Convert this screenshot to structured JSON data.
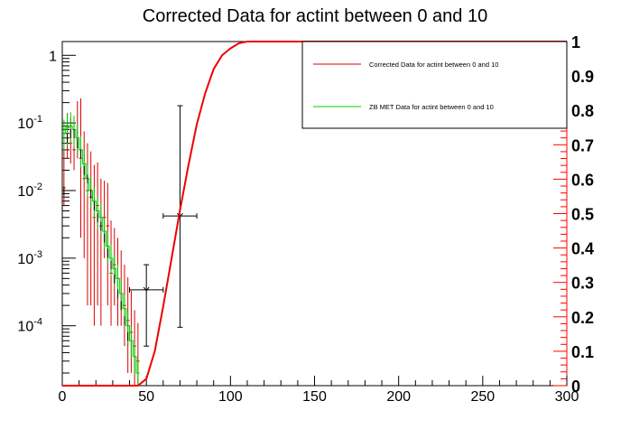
{
  "chart_data": {
    "type": "line",
    "title": "Corrected Data for actint between 0 and 10",
    "x_axis": {
      "range": [
        0,
        300
      ],
      "ticks": [
        0,
        50,
        100,
        150,
        200,
        250,
        300
      ],
      "tick_labels": [
        "0",
        "50",
        "100",
        "150",
        "200",
        "250",
        "300"
      ],
      "label": ""
    },
    "y_axis_left": {
      "scale": "log",
      "range": [
        1.3e-05,
        1.6
      ],
      "ticks": [
        0.0001,
        0.001,
        0.01,
        0.1,
        1
      ],
      "tick_labels": [
        {
          "base": "10",
          "exp": "-4"
        },
        {
          "base": "10",
          "exp": "-3"
        },
        {
          "base": "10",
          "exp": "-2"
        },
        {
          "base": "10",
          "exp": "-1"
        },
        {
          "base": "1",
          "exp": ""
        }
      ],
      "color": "#000000"
    },
    "y_axis_right": {
      "scale": "linear",
      "range": [
        0,
        1
      ],
      "ticks": [
        0,
        0.1,
        0.2,
        0.3,
        0.4,
        0.5,
        0.6,
        0.7,
        0.8,
        0.9,
        1
      ],
      "tick_labels": [
        "0",
        "0.1",
        "0.2",
        "0.3",
        "0.4",
        "0.5",
        "0.6",
        "0.7",
        "0.8",
        "0.9",
        "1"
      ],
      "color": "#ff0000"
    },
    "legend": {
      "placement": "top-right",
      "entries": [
        {
          "label": "Corrected Data for actint between 0 and 10",
          "color": "#dd0000"
        },
        {
          "label": "ZB MET Data for actint between 0 and 10",
          "color": "#00cc00"
        }
      ]
    },
    "series": [
      {
        "name": "Corrected Data for actint between 0 and 10",
        "color": "#dd0000",
        "axis": "left",
        "style": "error-bars",
        "points": [
          {
            "x": 1,
            "y": 0.011,
            "yerr": [
              0.005,
              0.03
            ]
          },
          {
            "x": 3,
            "y": 0.06,
            "yerr": [
              0.03,
              0.08
            ]
          },
          {
            "x": 5,
            "y": 0.05,
            "yerr": [
              0.025,
              0.07
            ]
          },
          {
            "x": 7,
            "y": 0.04,
            "yerr": [
              0.02,
              0.06
            ]
          },
          {
            "x": 9,
            "y": 0.06,
            "yerr": [
              0.03,
              0.15
            ]
          },
          {
            "x": 11,
            "y": 0.03,
            "yerr": [
              0.028,
              0.2
            ]
          },
          {
            "x": 13,
            "y": 0.015,
            "yerr": [
              0.014,
              0.06
            ]
          },
          {
            "x": 15,
            "y": 0.01,
            "yerr": [
              0.0098,
              0.04
            ]
          },
          {
            "x": 17,
            "y": 0.008,
            "yerr": [
              0.0078,
              0.03
            ]
          },
          {
            "x": 19,
            "y": 0.004,
            "yerr": [
              0.0039,
              0.02
            ]
          },
          {
            "x": 21,
            "y": 0.006,
            "yerr": [
              0.0058,
              0.02
            ]
          },
          {
            "x": 23,
            "y": 0.003,
            "yerr": [
              0.0029,
              0.012
            ]
          },
          {
            "x": 25,
            "y": 0.004,
            "yerr": [
              0.003,
              0.01
            ]
          },
          {
            "x": 27,
            "y": 0.003,
            "yerr": [
              0.0028,
              0.01
            ]
          },
          {
            "x": 29,
            "y": 0.0006,
            "yerr": [
              0.0005,
              0.003
            ]
          },
          {
            "x": 31,
            "y": 0.0008,
            "yerr": [
              0.0006,
              0.002
            ]
          },
          {
            "x": 33,
            "y": 0.0005,
            "yerr": [
              0.0004,
              0.0015
            ]
          },
          {
            "x": 35,
            "y": 0.0003,
            "yerr": [
              0.0002,
              0.001
            ]
          },
          {
            "x": 37,
            "y": 0.0002,
            "yerr": [
              0.00015,
              0.0006
            ]
          },
          {
            "x": 39,
            "y": 0.00012,
            "yerr": [
              0.0001,
              0.0004
            ]
          },
          {
            "x": 41,
            "y": 8e-05,
            "yerr": [
              6e-05,
              0.00025
            ]
          },
          {
            "x": 43,
            "y": 5e-05,
            "yerr": [
              4e-05,
              0.00012
            ]
          },
          {
            "x": 45,
            "y": 3e-05,
            "yerr": [
              2e-05,
              8e-05
            ]
          }
        ]
      },
      {
        "name": "ZB MET Data for actint between 0 and 10",
        "color": "#00cc00",
        "axis": "left",
        "style": "histogram",
        "points": [
          {
            "x": 1,
            "y": 0.07
          },
          {
            "x": 3,
            "y": 0.085
          },
          {
            "x": 5,
            "y": 0.09
          },
          {
            "x": 7,
            "y": 0.08
          },
          {
            "x": 9,
            "y": 0.06
          },
          {
            "x": 11,
            "y": 0.04
          },
          {
            "x": 13,
            "y": 0.025
          },
          {
            "x": 15,
            "y": 0.015
          },
          {
            "x": 17,
            "y": 0.01
          },
          {
            "x": 19,
            "y": 0.007
          },
          {
            "x": 21,
            "y": 0.005
          },
          {
            "x": 23,
            "y": 0.004
          },
          {
            "x": 25,
            "y": 0.0025
          },
          {
            "x": 27,
            "y": 0.0015
          },
          {
            "x": 29,
            "y": 0.001
          },
          {
            "x": 31,
            "y": 0.0007
          },
          {
            "x": 33,
            "y": 0.0005
          },
          {
            "x": 35,
            "y": 0.0003
          },
          {
            "x": 37,
            "y": 0.00018
          },
          {
            "x": 39,
            "y": 0.0001
          },
          {
            "x": 41,
            "y": 6e-05
          },
          {
            "x": 43,
            "y": 3.5e-05
          },
          {
            "x": 45,
            "y": 2e-05
          }
        ]
      },
      {
        "name": "",
        "color": "#000000",
        "axis": "left",
        "style": "error-bars-small",
        "points": [
          {
            "x": 1,
            "y": 0.01
          },
          {
            "x": 3,
            "y": 0.06
          },
          {
            "x": 5,
            "y": 0.07
          },
          {
            "x": 7,
            "y": 0.07
          },
          {
            "x": 9,
            "y": 0.05
          },
          {
            "x": 11,
            "y": 0.035
          },
          {
            "x": 13,
            "y": 0.02
          },
          {
            "x": 15,
            "y": 0.015
          },
          {
            "x": 17,
            "y": 0.009
          },
          {
            "x": 19,
            "y": 0.006
          },
          {
            "x": 21,
            "y": 0.004
          },
          {
            "x": 23,
            "y": 0.003
          },
          {
            "x": 25,
            "y": 0.002
          },
          {
            "x": 27,
            "y": 0.0012
          },
          {
            "x": 29,
            "y": 0.0008
          },
          {
            "x": 31,
            "y": 0.0005
          },
          {
            "x": 33,
            "y": 0.0003
          },
          {
            "x": 35,
            "y": 0.0002
          },
          {
            "x": 37,
            "y": 0.00012
          },
          {
            "x": 39,
            "y": 7e-05
          }
        ]
      },
      {
        "name": "",
        "color": "#000000",
        "axis": "left",
        "style": "error-cross",
        "points": [
          {
            "x": 50,
            "xerr": 10,
            "y": 0.00034,
            "ylow": 5e-05,
            "yhigh": 0.0008
          },
          {
            "x": 70,
            "xerr": 10,
            "y": 0.0042,
            "ylow": 9.5e-05,
            "yhigh": 0.18
          }
        ]
      },
      {
        "name": "",
        "color": "#ee0000",
        "axis": "right",
        "style": "curve",
        "x": [
          0,
          45,
          50,
          55,
          60,
          65,
          70,
          75,
          80,
          85,
          90,
          95,
          100,
          105,
          110,
          115,
          120,
          300
        ],
        "y": [
          0,
          0.0,
          0.02,
          0.1,
          0.23,
          0.37,
          0.51,
          0.64,
          0.76,
          0.85,
          0.92,
          0.96,
          0.98,
          0.995,
          1.0,
          1.0,
          1.0,
          1.0
        ]
      }
    ]
  }
}
